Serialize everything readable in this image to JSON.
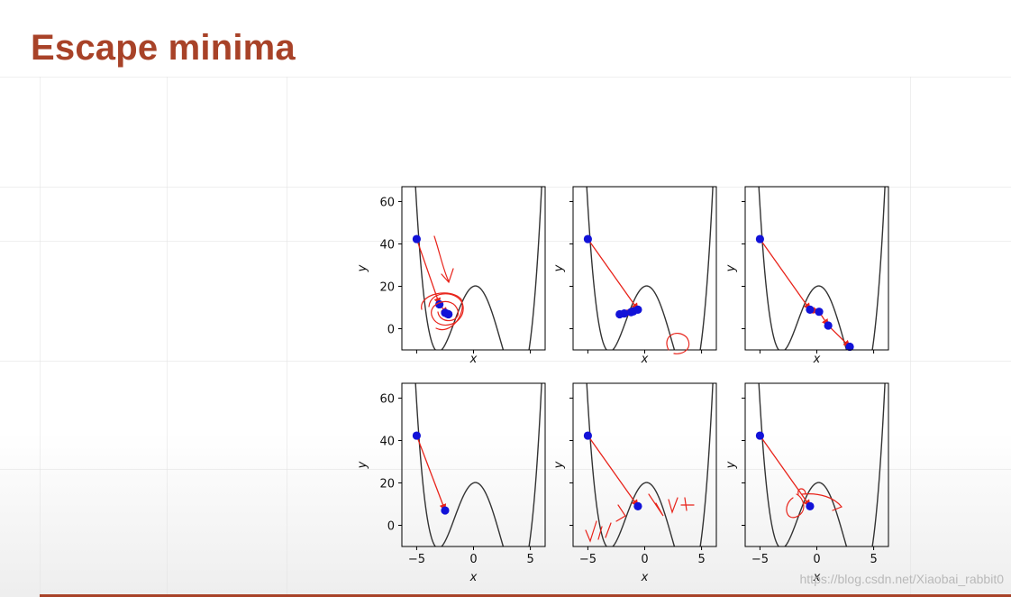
{
  "slide": {
    "title": "Escape minima",
    "title_color": "#a84228",
    "accent_color": "#a84228",
    "watermark": "https://blog.csdn.net/Xiaobai_rabbit0"
  },
  "chart_data": {
    "type": "line",
    "layout": "grid 2 rows x 3 columns",
    "curve": "y = x^4/4 - x^3/3 - 6x^2 + 2x + 20",
    "xlim": [
      -6.3,
      6.3
    ],
    "ylim": [
      -10,
      67
    ],
    "x_ticks": [
      -5,
      0,
      5
    ],
    "y_ticks": [
      0,
      20,
      40,
      60
    ],
    "xlabel": "x",
    "ylabel": "y",
    "grid": false,
    "curve_color": "#333333",
    "point_color": "#1212d8",
    "step_color": "#e8231a",
    "panels": [
      {
        "row": 0,
        "col": 0,
        "points": [
          [
            -5,
            42.3
          ],
          [
            -3,
            11.5
          ],
          [
            -2.3,
            7
          ],
          [
            -2.5,
            7.5
          ],
          [
            -2.2,
            6.8
          ]
        ]
      },
      {
        "row": 0,
        "col": 1,
        "points": [
          [
            -5,
            42.3
          ],
          [
            -0.6,
            9
          ],
          [
            -2.2,
            6.8
          ],
          [
            -1.2,
            7.8
          ],
          [
            -1.8,
            7.2
          ],
          [
            -1.0,
            8.2
          ]
        ]
      },
      {
        "row": 0,
        "col": 2,
        "points": [
          [
            -5,
            42.3
          ],
          [
            -0.6,
            9
          ],
          [
            0.2,
            8
          ],
          [
            1.0,
            1.5
          ],
          [
            2.9,
            -8.5
          ]
        ]
      },
      {
        "row": 1,
        "col": 0,
        "points": [
          [
            -5,
            42.3
          ],
          [
            -2.5,
            7
          ]
        ]
      },
      {
        "row": 1,
        "col": 1,
        "points": [
          [
            -5,
            42.3
          ],
          [
            -0.6,
            9
          ]
        ]
      },
      {
        "row": 1,
        "col": 2,
        "points": [
          [
            -5,
            42.3
          ],
          [
            -0.6,
            9
          ]
        ]
      }
    ]
  }
}
